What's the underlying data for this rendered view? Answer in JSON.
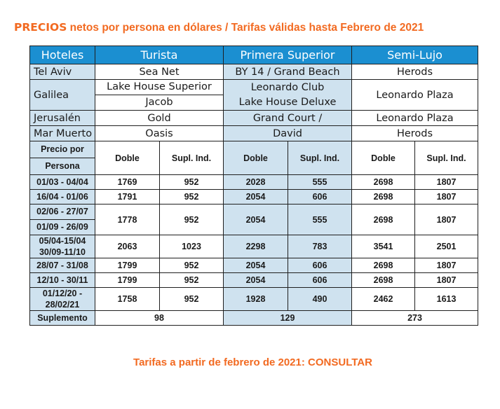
{
  "heading": {
    "prefix": "PRECIOS",
    "rest": " netos por persona en dólares / Tarifas válidas hasta Febrero de 2021"
  },
  "header": {
    "hoteles": "Hoteles",
    "turista": "Turista",
    "primera": "Primera Superior",
    "semi": "Semi-Lujo"
  },
  "hotels": [
    {
      "city": "Tel Aviv",
      "turista": [
        "Sea Net"
      ],
      "primera": [
        "BY 14 / Grand Beach"
      ],
      "semi": [
        "Herods"
      ]
    },
    {
      "city": "Galilea",
      "turista": [
        "Lake House Superior",
        "Jacob"
      ],
      "primera": [
        "Leonardo Club",
        "Lake House Deluxe"
      ],
      "semi": [
        "Leonardo Plaza"
      ]
    },
    {
      "city": "Jerusalén",
      "turista": [
        "Gold"
      ],
      "primera": [
        "Grand Court /"
      ],
      "semi": [
        "Leonardo Plaza"
      ]
    },
    {
      "city": "Mar Muerto",
      "turista": [
        "Oasis"
      ],
      "primera": [
        "David"
      ],
      "semi": [
        "Herods"
      ]
    }
  ],
  "price_header": {
    "line1": "Precio por",
    "line2": "Persona",
    "doble": "Doble",
    "supl": "Supl. Ind."
  },
  "rates": [
    {
      "dates": [
        "01/03 - 04/04"
      ],
      "v": [
        "1769",
        "952",
        "2028",
        "555",
        "2698",
        "1807"
      ]
    },
    {
      "dates": [
        "16/04 - 01/06"
      ],
      "v": [
        "1791",
        "952",
        "2054",
        "606",
        "2698",
        "1807"
      ]
    },
    {
      "dates": [
        "02/06 - 27/07",
        "01/09 - 26/09"
      ],
      "v": [
        "1778",
        "952",
        "2054",
        "555",
        "2698",
        "1807"
      ]
    },
    {
      "dates": [
        "05/04-15/04",
        "30/09-11/10"
      ],
      "v": [
        "2063",
        "1023",
        "2298",
        "783",
        "3541",
        "2501"
      ]
    },
    {
      "dates": [
        "28/07 - 31/08"
      ],
      "v": [
        "1799",
        "952",
        "2054",
        "606",
        "2698",
        "1807"
      ]
    },
    {
      "dates": [
        "12/10 - 30/11"
      ],
      "v": [
        "1799",
        "952",
        "2054",
        "606",
        "2698",
        "1807"
      ]
    },
    {
      "dates": [
        "01/12/20 -",
        "28/02/21"
      ],
      "v": [
        "1758",
        "952",
        "1928",
        "490",
        "2462",
        "1613"
      ]
    }
  ],
  "suplemento": {
    "label": "Suplemento",
    "turista": "98",
    "primera": "129",
    "semi": "273"
  },
  "footer": "Tarifas a partir de febrero de 2021: CONSULTAR",
  "colors": {
    "accent": "#f26a21",
    "header_blue": "#1b8fd1",
    "light_blue": "#cfe2ef"
  }
}
